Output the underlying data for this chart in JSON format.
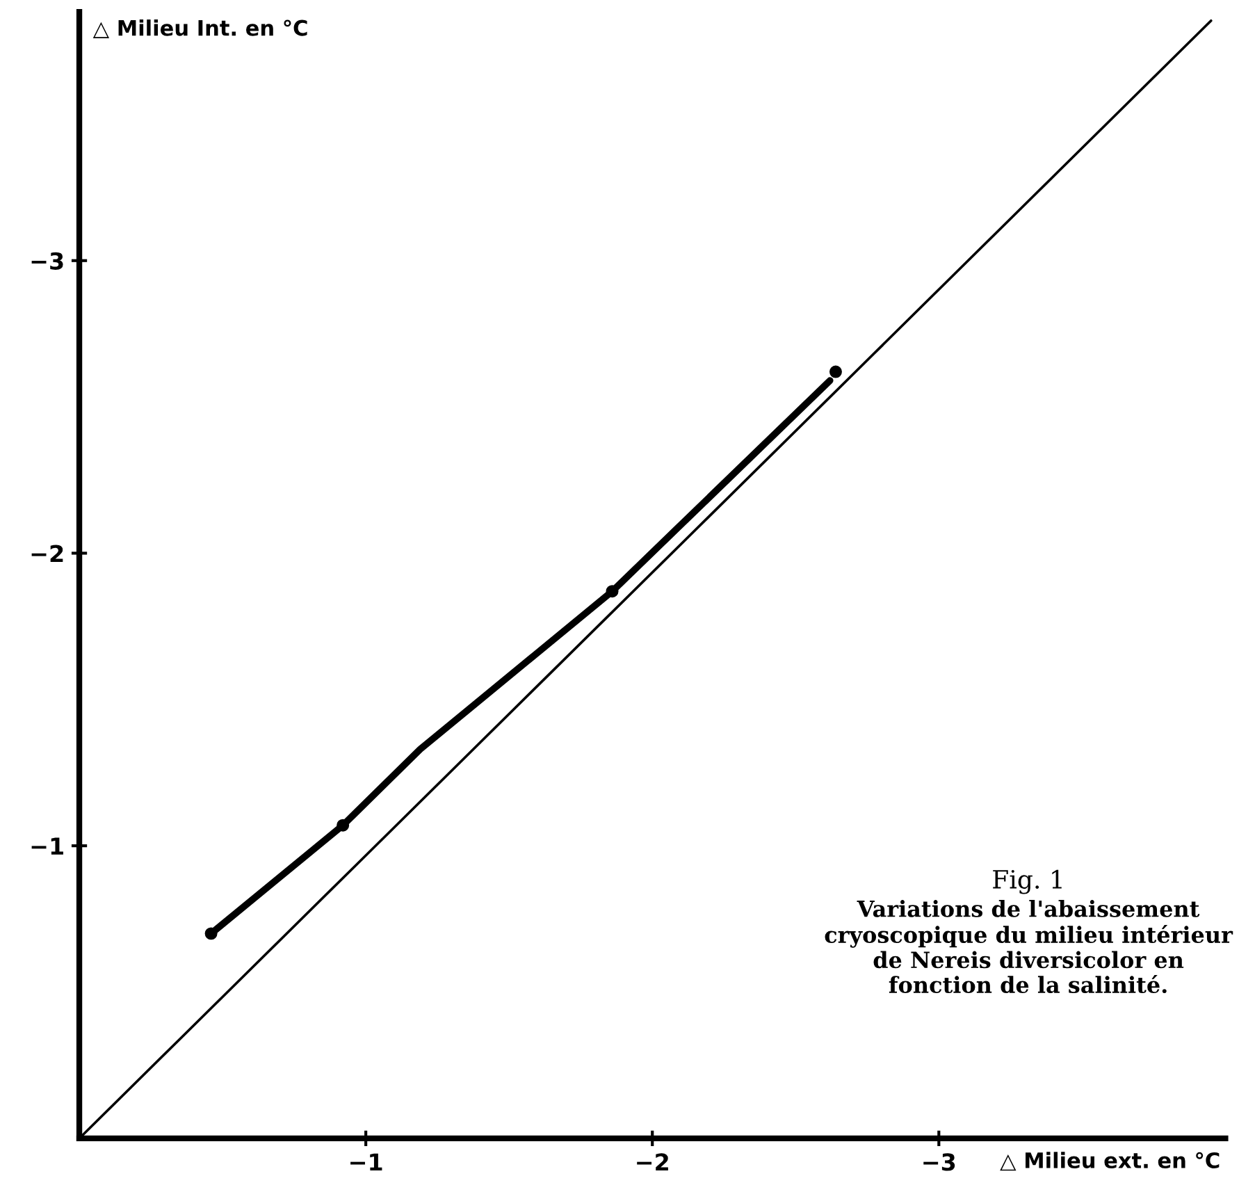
{
  "chart_data": {
    "type": "line",
    "xlabel": "△ Milieu ext. en °C",
    "ylabel": "△ Milieu Int. en °C",
    "xlim": [
      0,
      -4.0
    ],
    "ylim": [
      0,
      -3.85
    ],
    "xticks": [
      {
        "value": -1,
        "label": "−1"
      },
      {
        "value": -2,
        "label": "−2"
      },
      {
        "value": -3,
        "label": "−3"
      }
    ],
    "yticks": [
      {
        "value": -1,
        "label": "−1"
      },
      {
        "value": -2,
        "label": "−2"
      },
      {
        "value": -3,
        "label": "−3"
      }
    ],
    "grid": false,
    "series": [
      {
        "color": "#000000",
        "x": [
          -0.46,
          -0.92,
          -1.19,
          -1.86,
          -2.62
        ],
        "values": [
          -0.7,
          -1.07,
          -1.33,
          -1.87,
          -2.59
        ]
      },
      {
        "type": "scatter",
        "color": "#000000",
        "marker": "circle",
        "x": [
          -0.46,
          -0.92,
          -1.86,
          -2.64
        ],
        "values": [
          -0.7,
          -1.07,
          -1.87,
          -2.62
        ]
      },
      {
        "color": "#000000",
        "x": [
          0,
          -3.95
        ],
        "values": [
          0,
          -3.82
        ]
      }
    ],
    "annotations": [
      "Fig. 1",
      "Variations de l'abaissement cryoscopique du milieu intérieur de Nereis diversicolor en fonction de la salinité."
    ]
  }
}
